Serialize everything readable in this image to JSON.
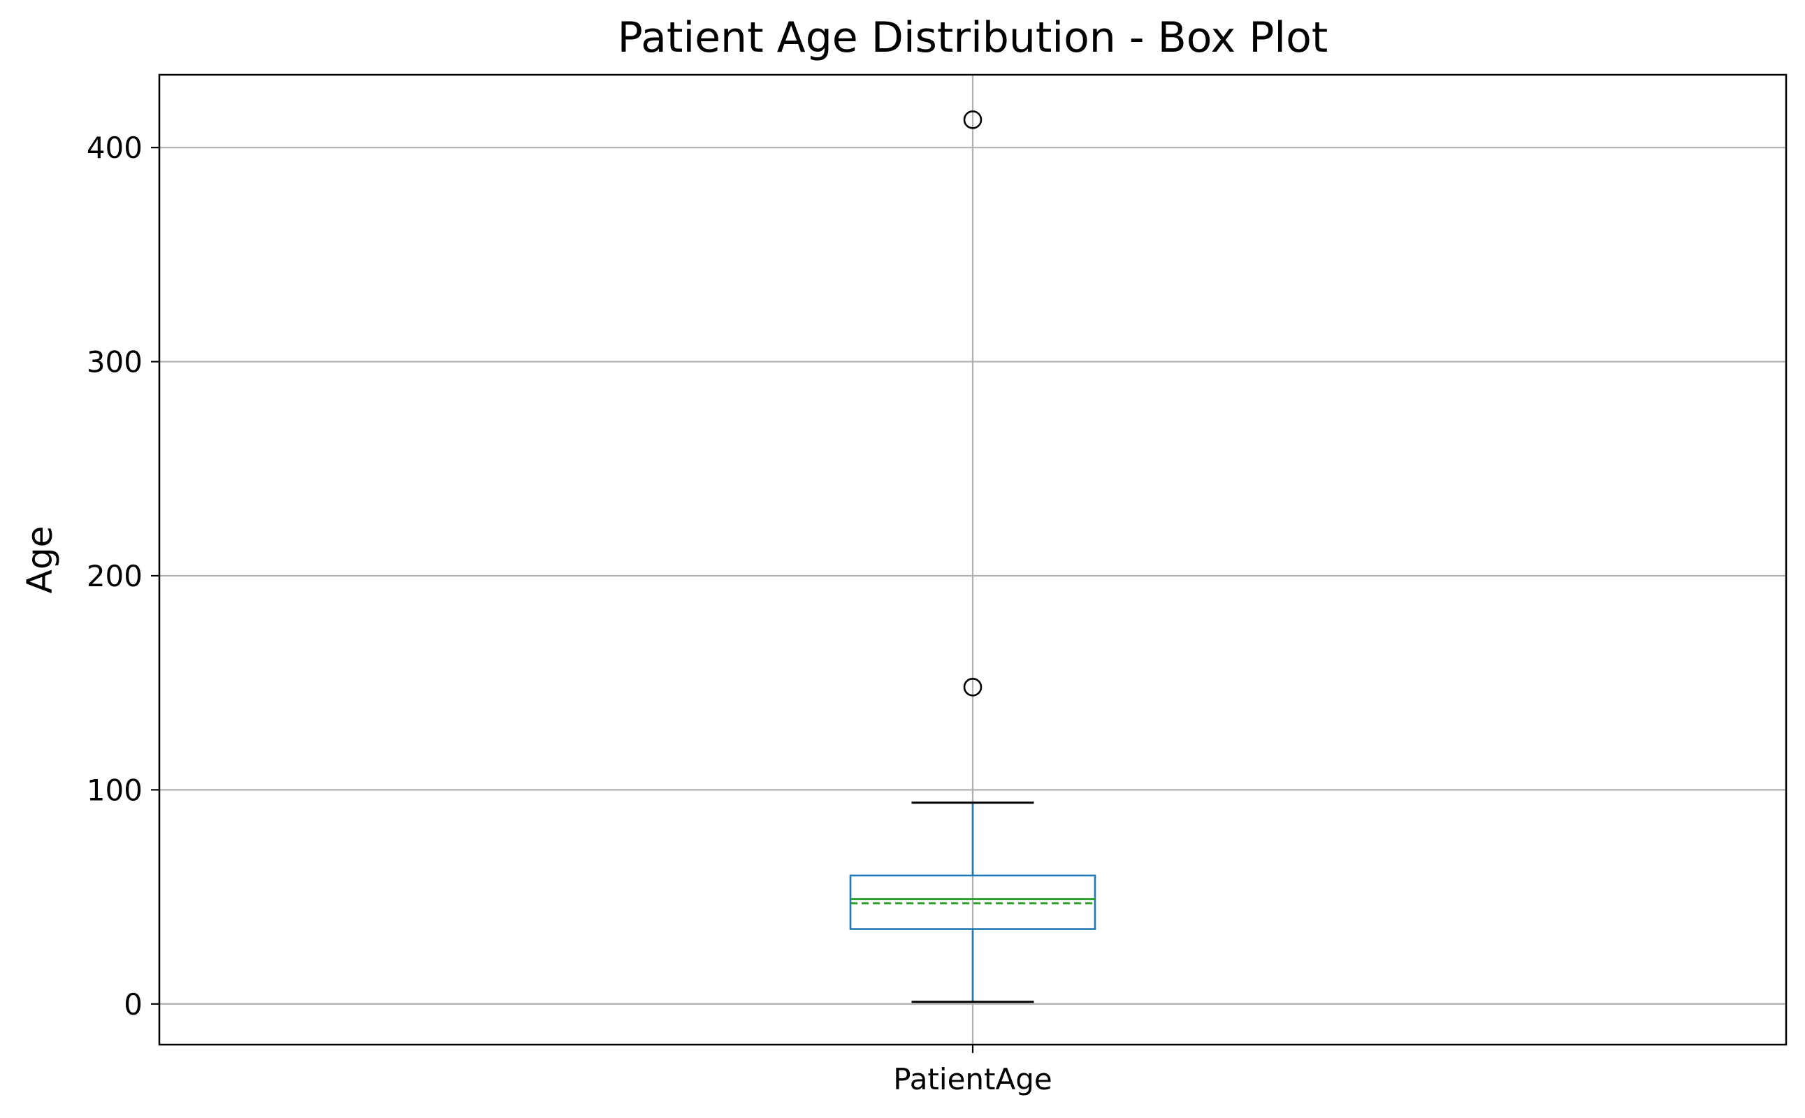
{
  "chart_data": {
    "type": "box",
    "title": "Patient Age Distribution - Box Plot",
    "xlabel": "",
    "ylabel": "Age",
    "ylim": [
      -19,
      434
    ],
    "yticks": [
      0,
      100,
      200,
      300,
      400
    ],
    "categories": [
      "PatientAge"
    ],
    "grid": true,
    "boxes": [
      {
        "category": "PatientAge",
        "whisker_low": 1,
        "q1": 35,
        "median": 49,
        "mean": 47,
        "q3": 60,
        "whisker_high": 94,
        "outliers": [
          148,
          413
        ]
      }
    ],
    "colors": {
      "box": "#1f77b4",
      "median": "#2ca02c",
      "mean": "#2ca02c",
      "whisker_cap": "#000000",
      "grid": "#b0b0b0",
      "outlier": "#000000"
    }
  }
}
